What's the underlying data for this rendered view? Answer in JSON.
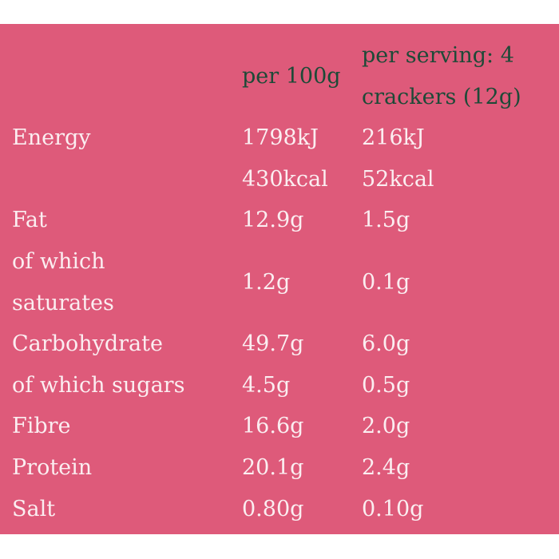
{
  "header": {
    "per100": "per 100g",
    "perServing1": "per serving: 4",
    "perServing2": "crackers (12g)"
  },
  "rows": [
    {
      "label": [
        "Energy",
        ""
      ],
      "per100": [
        "1798kJ",
        "430kcal"
      ],
      "perServing": [
        "216kJ",
        "52kcal"
      ]
    },
    {
      "label": [
        "Fat"
      ],
      "per100": [
        "12.9g"
      ],
      "perServing": [
        "1.5g"
      ]
    },
    {
      "label": [
        "of which",
        "saturates"
      ],
      "per100": [
        "1.2g"
      ],
      "perServing": [
        "0.1g"
      ]
    },
    {
      "label": [
        "Carbohydrate"
      ],
      "per100": [
        "49.7g"
      ],
      "perServing": [
        "6.0g"
      ]
    },
    {
      "label": [
        "of which sugars"
      ],
      "per100": [
        "4.5g"
      ],
      "perServing": [
        "0.5g"
      ]
    },
    {
      "label": [
        "Fibre"
      ],
      "per100": [
        "16.6g"
      ],
      "perServing": [
        "2.0g"
      ]
    },
    {
      "label": [
        "Protein"
      ],
      "per100": [
        "20.1g"
      ],
      "perServing": [
        "2.4g"
      ]
    },
    {
      "label": [
        "Salt"
      ],
      "per100": [
        "0.80g"
      ],
      "perServing": [
        "0.10g"
      ]
    }
  ],
  "colors": {
    "background": "#de5a7a",
    "header_text": "#1d4a37",
    "body_text": "#fbeef1"
  }
}
